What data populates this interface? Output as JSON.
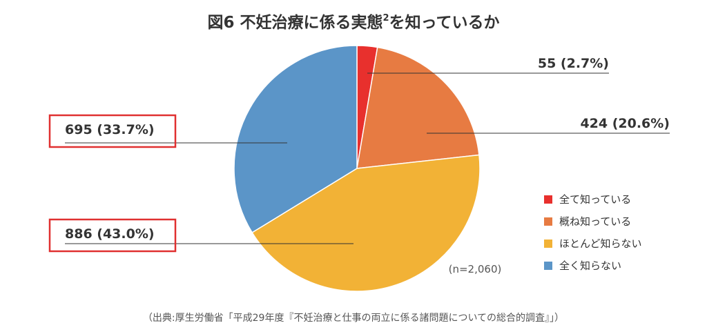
{
  "chart_data": {
    "type": "pie",
    "title": "図6 不妊治療に係る実態",
    "title_superscript": "2",
    "title_suffix": "を知っているか",
    "slices": [
      {
        "name": "全て知っている",
        "value": 55,
        "percent": 2.7,
        "label": "55 (2.7%)",
        "color": "#e8302d"
      },
      {
        "name": "概ね知っている",
        "value": 424,
        "percent": 20.6,
        "label": "424 (20.6%)",
        "color": "#e77b42"
      },
      {
        "name": "ほとんど知らない",
        "value": 886,
        "percent": 43.0,
        "label": "886 (43.0%)",
        "color": "#f2b236"
      },
      {
        "name": "全く知らない",
        "value": 695,
        "percent": 33.7,
        "label": "695 (33.7%)",
        "color": "#5b95c8"
      }
    ],
    "highlighted": [
      "695 (33.7%)",
      "886 (43.0%)"
    ],
    "highlight_color": "#e03030",
    "n_label": "(n=2,060)",
    "legend_position": "right",
    "source": "（出典:厚生労働省「平成29年度『不妊治療と仕事の両立に係る諸問題についての総合的調査』」）"
  }
}
